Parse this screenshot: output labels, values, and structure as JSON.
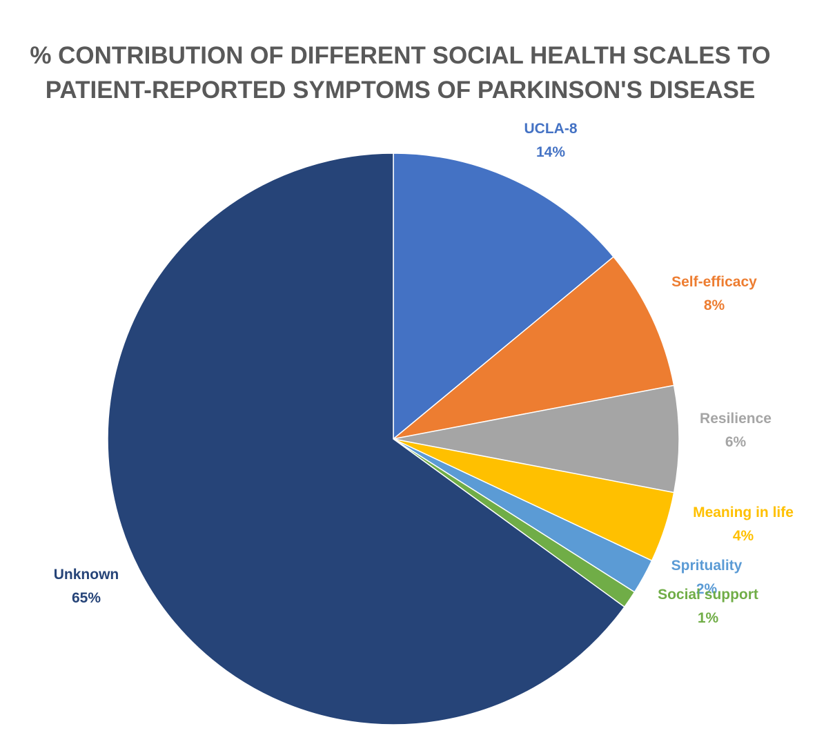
{
  "chart_data": {
    "type": "pie",
    "title": [
      "% CONTRIBUTION OF DIFFERENT SOCIAL HEALTH SCALES TO",
      "PATIENT-REPORTED SYMPTOMS OF PARKINSON'S DISEASE"
    ],
    "slices": [
      {
        "name": "UCLA-8",
        "value": 14,
        "label": "14%",
        "color": "#4472C4"
      },
      {
        "name": "Self-efficacy",
        "value": 8,
        "label": "8%",
        "color": "#ED7D31"
      },
      {
        "name": "Resilience",
        "value": 6,
        "label": "6%",
        "color": "#A5A5A5"
      },
      {
        "name": "Meaning in life",
        "value": 4,
        "label": "4%",
        "color": "#FFC000"
      },
      {
        "name": "Sprituality",
        "value": 2,
        "label": "2%",
        "color": "#5B9BD5"
      },
      {
        "name": "Social support",
        "value": 1,
        "label": "1%",
        "color": "#70AD47"
      },
      {
        "name": "Unknown",
        "value": 65,
        "label": "65%",
        "color": "#264478"
      }
    ],
    "start_angle_deg": 0,
    "direction": "clockwise"
  }
}
